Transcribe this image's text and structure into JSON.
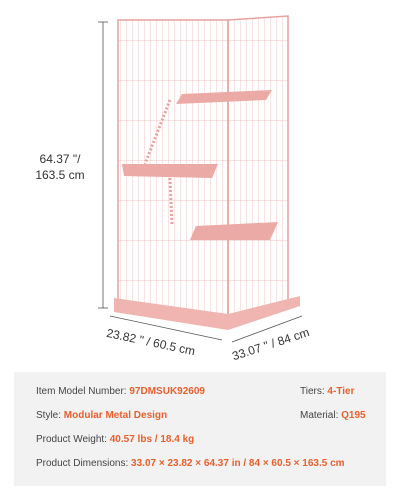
{
  "dimensions": {
    "height": [
      "64.37 \"/",
      "163.5 cm"
    ],
    "depth": "23.82 \" / 60.5 cm",
    "width": "33.07 \" / 84 cm"
  },
  "specs": [
    {
      "label": "Item Model Number:",
      "value": "97DMSUK92609"
    },
    {
      "label": "Tiers:",
      "value": "4-Tier"
    },
    {
      "label": "Style:",
      "value": "Modular Metal Design"
    },
    {
      "label": "Material:",
      "value": "Q195"
    },
    {
      "label": "Product Weight:",
      "value": "40.57 lbs / 18.4 kg"
    },
    {
      "label": "Product Dimensions:",
      "value": "33.07 × 23.82 × 64.37 in / 84 × 60.5 × 163.5 cm"
    }
  ]
}
